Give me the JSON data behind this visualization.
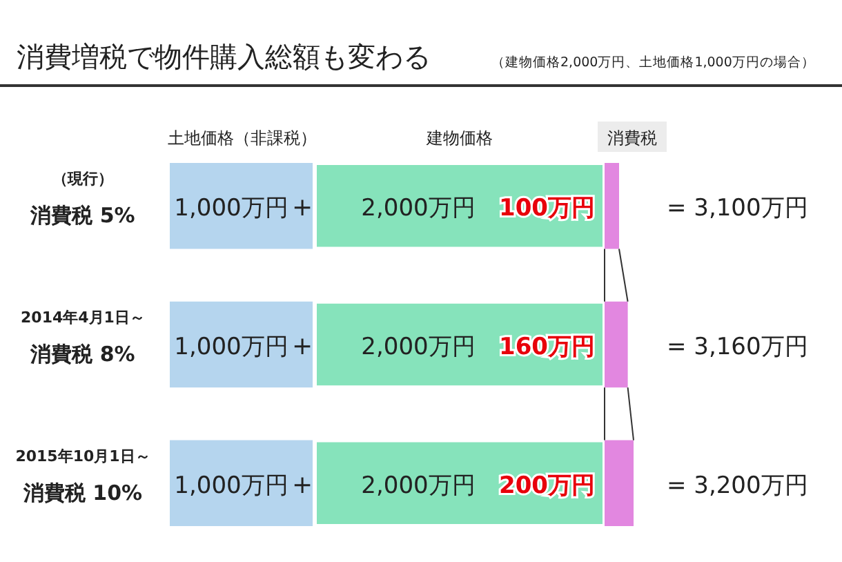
{
  "chart_data": {
    "type": "bar",
    "orientation": "horizontal",
    "stacked": true,
    "title": "消費増税で物件購入総額も変わる",
    "subtitle": "（建物価格2,000万円、土地価格1,000万円の場合）",
    "categories": [
      "（現行）消費税 5%",
      "2014年4月1日～消費税 8%",
      "2015年10月1日～消費税 10%"
    ],
    "series": [
      {
        "name": "土地価格（非課税）",
        "color": "#b5d5ee",
        "values": [
          1000,
          1000,
          1000
        ],
        "value_labels": [
          "1,000万円",
          "1,000万円",
          "1,000万円"
        ]
      },
      {
        "name": "建物価格",
        "color": "#86e3bb",
        "values": [
          2000,
          2000,
          2000
        ],
        "value_labels": [
          "2,000万円",
          "2,000万円",
          "2,000万円"
        ]
      },
      {
        "name": "消費税",
        "color": "#e287e0",
        "values": [
          100,
          160,
          200
        ],
        "value_labels": [
          "100万円",
          "160万円",
          "200万円"
        ]
      }
    ],
    "totals": [
      "= 3,100万円",
      "= 3,160万円",
      "= 3,200万円"
    ],
    "annotations": [
      "+",
      "+",
      "+"
    ],
    "legend": "top"
  }
}
